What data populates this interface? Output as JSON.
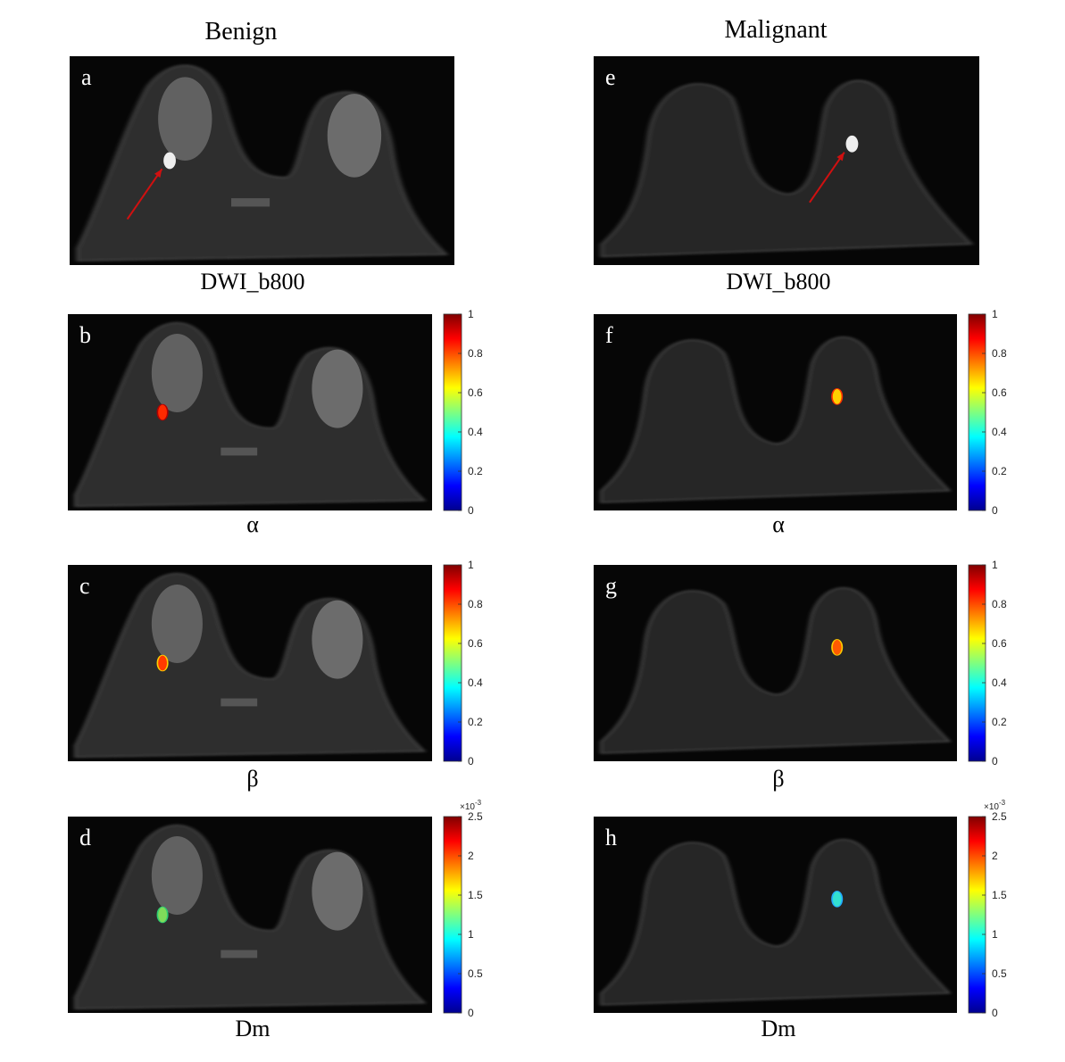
{
  "columns": [
    {
      "title": "Benign"
    },
    {
      "title": "Malignant"
    }
  ],
  "panels": [
    {
      "letter": "a",
      "caption": "DWI_b800"
    },
    {
      "letter": "b",
      "caption": "α",
      "colorbar": {
        "ticks": [
          0,
          0.2,
          0.4,
          0.6,
          0.8,
          1
        ]
      }
    },
    {
      "letter": "c",
      "caption": "β",
      "colorbar": {
        "ticks": [
          0,
          0.2,
          0.4,
          0.6,
          0.8,
          1
        ]
      }
    },
    {
      "letter": "d",
      "caption": "Dm",
      "colorbar": {
        "ticks": [
          0,
          0.5,
          1,
          1.5,
          2,
          2.5
        ],
        "multiplier": {
          "base": "×10",
          "exponent": "-3"
        }
      }
    },
    {
      "letter": "e",
      "caption": "DWI_b800"
    },
    {
      "letter": "f",
      "caption": "α",
      "colorbar": {
        "ticks": [
          0,
          0.2,
          0.4,
          0.6,
          0.8,
          1
        ]
      }
    },
    {
      "letter": "g",
      "caption": "β",
      "colorbar": {
        "ticks": [
          0,
          0.2,
          0.4,
          0.6,
          0.8,
          1
        ]
      }
    },
    {
      "letter": "h",
      "caption": "Dm",
      "colorbar": {
        "ticks": [
          0,
          0.5,
          1,
          1.5,
          2,
          2.5
        ],
        "multiplier": {
          "base": "×10",
          "exponent": "-3"
        }
      }
    }
  ]
}
